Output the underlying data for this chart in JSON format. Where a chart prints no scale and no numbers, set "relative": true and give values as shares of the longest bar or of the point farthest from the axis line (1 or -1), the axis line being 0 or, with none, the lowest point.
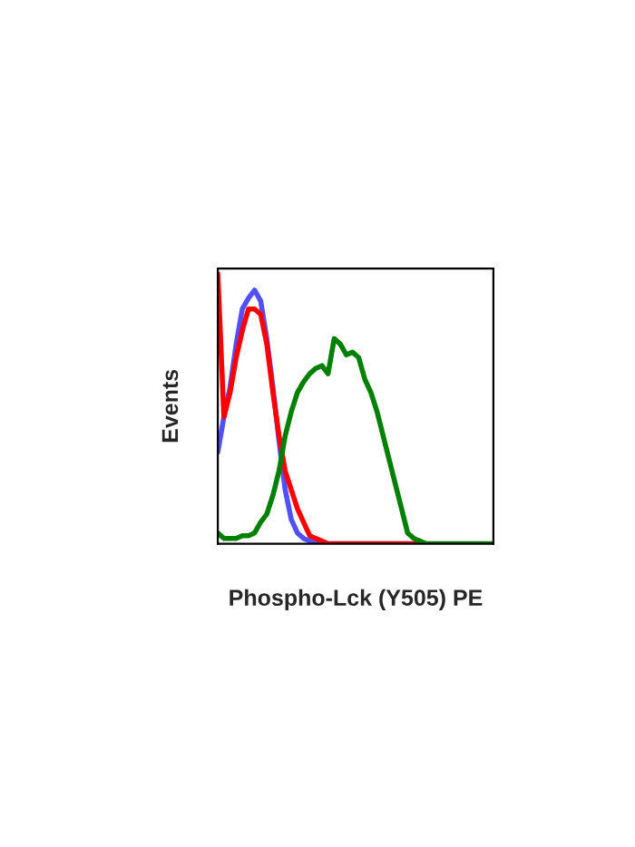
{
  "chart_data": {
    "type": "line",
    "xlabel": "Phospho-Lck (Y505) PE",
    "ylabel": "Events",
    "relative": true,
    "categories": [
      null,
      null,
      null,
      null,
      null,
      null,
      null,
      null,
      null,
      null,
      null,
      null,
      null,
      null,
      null,
      null,
      null,
      null,
      null,
      null,
      null,
      null,
      null,
      null,
      null,
      null,
      null,
      null,
      null,
      null,
      null,
      null,
      null,
      null,
      null,
      null,
      null,
      null,
      null,
      null,
      null,
      null,
      null,
      null,
      null,
      null
    ],
    "series": [
      {
        "color": "#5050ff",
        "values": [
          0.34,
          0.47,
          0.58,
          0.74,
          0.87,
          0.91,
          0.94,
          0.9,
          0.76,
          0.58,
          0.38,
          0.2,
          0.09,
          0.04,
          0.02,
          0.01,
          0,
          0,
          null,
          null,
          null,
          null,
          null,
          null,
          null,
          null,
          null,
          null,
          null,
          null,
          null,
          null,
          null,
          null,
          null,
          null,
          null,
          null,
          null,
          null,
          null,
          null,
          null,
          null,
          null,
          null
        ]
      },
      {
        "color": "#ff0000",
        "values": [
          1.0,
          0.47,
          0.56,
          0.69,
          0.79,
          0.87,
          0.87,
          0.85,
          0.74,
          0.56,
          0.4,
          0.27,
          0.2,
          0.13,
          0.08,
          0.03,
          0.02,
          0.01,
          0,
          0,
          0,
          0,
          0,
          0,
          0,
          0,
          0,
          0,
          0,
          0,
          0,
          0,
          0,
          0,
          0,
          null,
          null,
          null,
          null,
          null,
          null,
          null,
          null,
          null,
          null,
          null
        ]
      },
      {
        "color": "#008000",
        "values": [
          0.04,
          0.02,
          0.02,
          0.02,
          0.03,
          0.03,
          0.04,
          0.08,
          0.11,
          0.18,
          0.27,
          0.4,
          0.49,
          0.56,
          0.6,
          0.63,
          0.65,
          0.66,
          0.63,
          0.76,
          0.74,
          0.7,
          0.71,
          0.69,
          0.61,
          0.56,
          0.49,
          0.4,
          0.31,
          0.22,
          0.13,
          0.04,
          0.02,
          0.01,
          0,
          0,
          0,
          0,
          0,
          0,
          0,
          0,
          0,
          0,
          0,
          0
        ]
      }
    ]
  }
}
